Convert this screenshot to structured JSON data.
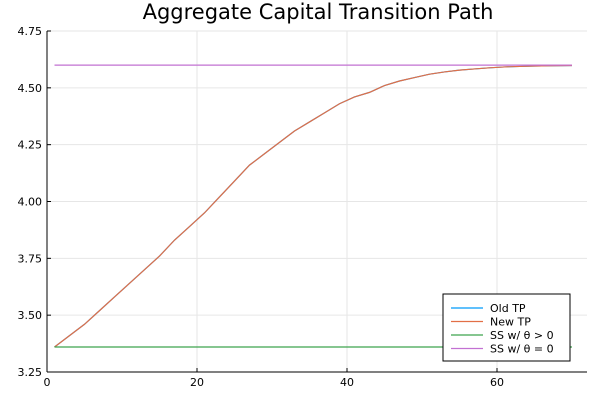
{
  "chart_data": {
    "type": "line",
    "title": "Aggregate Capital Transition Path",
    "xlabel": "",
    "ylabel": "",
    "xlim": [
      0,
      72
    ],
    "ylim": [
      3.25,
      4.75
    ],
    "xticks": [
      0,
      20,
      40,
      60
    ],
    "xtick_labels": [
      "0",
      "20",
      "40",
      "60"
    ],
    "yticks": [
      3.25,
      3.5,
      3.75,
      4.0,
      4.25,
      4.5,
      4.75
    ],
    "ytick_labels": [
      "3.25",
      "3.50",
      "3.75",
      "4.00",
      "4.25",
      "4.50",
      "4.75"
    ],
    "grid": true,
    "legend_position": "bottom-right",
    "series": [
      {
        "name": "Old TP",
        "color": "#009AFA",
        "x": [
          1,
          3,
          5,
          7,
          9,
          11,
          13,
          15,
          17,
          19,
          21,
          23,
          25,
          27,
          29,
          31,
          33,
          35,
          37,
          39,
          41,
          43,
          45,
          47,
          49,
          51,
          53,
          55,
          57,
          59,
          61,
          63,
          65,
          67,
          70
        ],
        "y": [
          3.36,
          3.41,
          3.46,
          3.52,
          3.58,
          3.64,
          3.7,
          3.76,
          3.83,
          3.89,
          3.95,
          4.02,
          4.09,
          4.16,
          4.21,
          4.26,
          4.31,
          4.35,
          4.39,
          4.43,
          4.46,
          4.48,
          4.51,
          4.53,
          4.545,
          4.56,
          4.57,
          4.578,
          4.583,
          4.588,
          4.592,
          4.594,
          4.596,
          4.597,
          4.598
        ]
      },
      {
        "name": "New TP",
        "color": "#E26F46",
        "x": [
          1,
          3,
          5,
          7,
          9,
          11,
          13,
          15,
          17,
          19,
          21,
          23,
          25,
          27,
          29,
          31,
          33,
          35,
          37,
          39,
          41,
          43,
          45,
          47,
          49,
          51,
          53,
          55,
          57,
          59,
          61,
          63,
          65,
          67,
          70
        ],
        "y": [
          3.36,
          3.41,
          3.46,
          3.52,
          3.58,
          3.64,
          3.7,
          3.76,
          3.83,
          3.89,
          3.95,
          4.02,
          4.09,
          4.16,
          4.21,
          4.26,
          4.31,
          4.35,
          4.39,
          4.43,
          4.46,
          4.48,
          4.51,
          4.53,
          4.545,
          4.56,
          4.57,
          4.578,
          4.583,
          4.588,
          4.592,
          4.594,
          4.596,
          4.597,
          4.598
        ]
      },
      {
        "name": "SS w/ θ > 0",
        "color": "#3EA44E",
        "x": [
          1,
          70
        ],
        "y": [
          3.36,
          3.36
        ]
      },
      {
        "name": "SS w/ θ = 0",
        "color": "#C271D2",
        "x": [
          1,
          70
        ],
        "y": [
          4.6,
          4.6
        ]
      }
    ]
  }
}
